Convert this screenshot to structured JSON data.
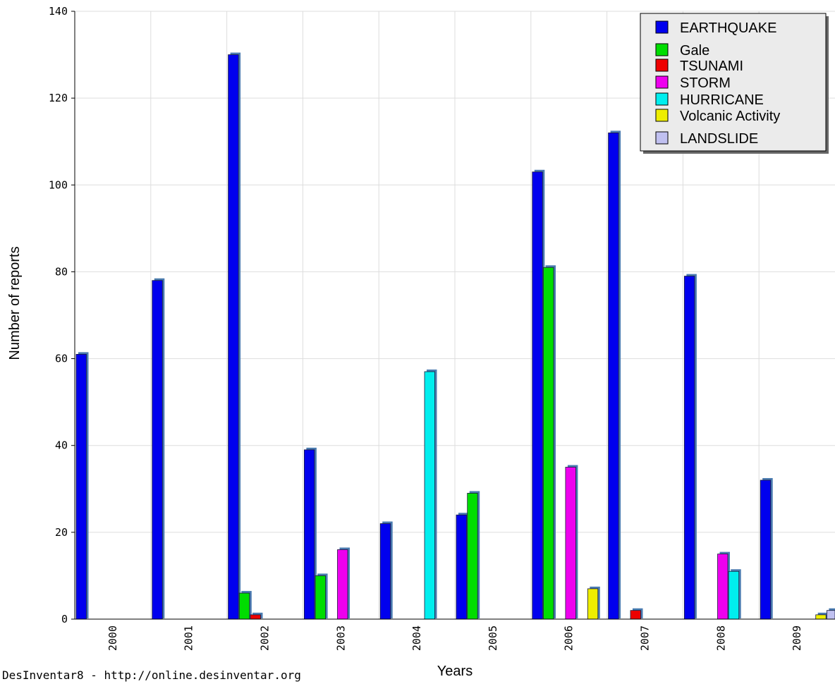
{
  "chart_data": {
    "type": "bar",
    "title": "",
    "xlabel": "Years",
    "ylabel": "Number of reports",
    "ylim": [
      0,
      140
    ],
    "yticks": [
      0,
      20,
      40,
      60,
      80,
      100,
      120,
      140
    ],
    "grid": true,
    "legend_position": "top-right",
    "categories": [
      "2000",
      "2001",
      "2002",
      "2003",
      "2004",
      "2005",
      "2006",
      "2007",
      "2008",
      "2009"
    ],
    "series": [
      {
        "name": "EARTHQUAKE",
        "color": "#0000ee",
        "values": [
          61,
          78,
          130,
          39,
          22,
          24,
          103,
          112,
          79,
          32
        ]
      },
      {
        "name": "Gale",
        "color": "#00dd00",
        "values": [
          0,
          0,
          6,
          10,
          0,
          29,
          81,
          0,
          0,
          0
        ]
      },
      {
        "name": "TSUNAMI",
        "color": "#ee0000",
        "values": [
          0,
          0,
          1,
          0,
          0,
          0,
          0,
          2,
          0,
          0
        ]
      },
      {
        "name": "STORM",
        "color": "#ee00ee",
        "values": [
          0,
          0,
          0,
          16,
          0,
          0,
          35,
          0,
          15,
          0
        ]
      },
      {
        "name": "HURRICANE",
        "color": "#00eeee",
        "values": [
          0,
          0,
          0,
          0,
          57,
          0,
          0,
          0,
          11,
          0
        ]
      },
      {
        "name": "Volcanic Activity",
        "color": "#eeee00",
        "values": [
          0,
          0,
          0,
          0,
          0,
          0,
          7,
          0,
          0,
          1
        ]
      },
      {
        "name": "LANDSLIDE",
        "color": "#c0c0f0",
        "values": [
          0,
          0,
          0,
          0,
          0,
          0,
          0,
          0,
          0,
          2
        ]
      }
    ]
  },
  "footer": {
    "credit": "DesInventar8 - http://online.desinventar.org"
  }
}
